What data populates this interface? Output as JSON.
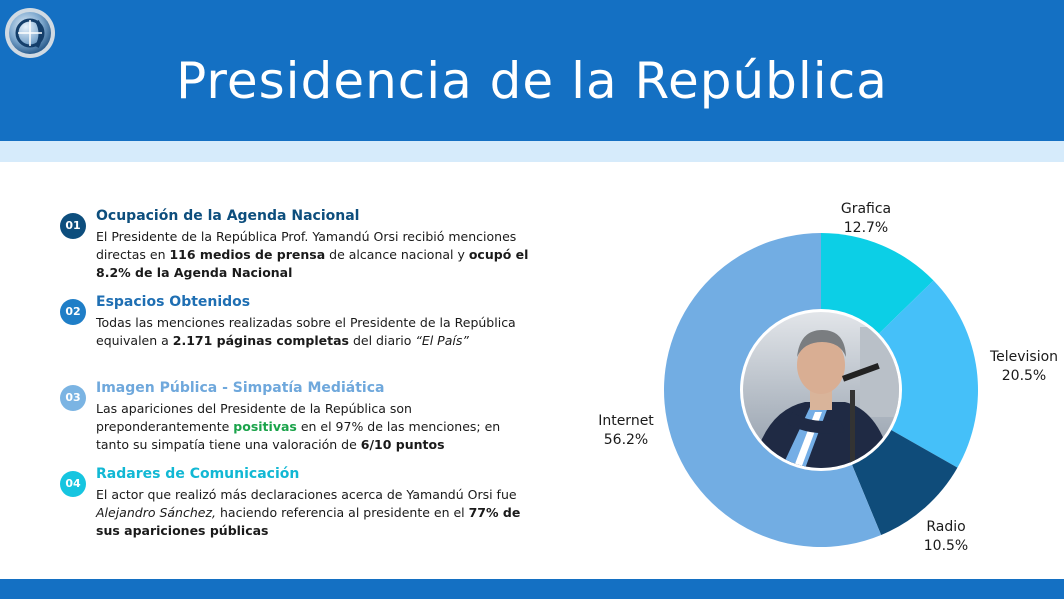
{
  "header": {
    "title": "Presidencia de la República"
  },
  "colors": {
    "header_bg": "#1470c3",
    "subband": "#d6ebfb",
    "badge1": "#0d4e7d",
    "badge2": "#1f7ec7",
    "badge3": "#7bb4e3",
    "badge4": "#16c5e0",
    "positive": "#1aa34a"
  },
  "items": [
    {
      "num": "01",
      "title": "Ocupación de la Agenda Nacional",
      "p1": "El Presidente de la República Prof. Yamandú Orsi recibió menciones directas en ",
      "b1": "116 medios de prensa",
      "p2": " de alcance nacional y ",
      "b2": "ocupó el 8.2% de la Agenda Nacional"
    },
    {
      "num": "02",
      "title": "Espacios Obtenidos",
      "p1": "Todas las menciones realizadas sobre el Presidente de la República equivalen a ",
      "b1": "2.171 páginas completas",
      "p2": " del diario ",
      "i1": "“El País”"
    },
    {
      "num": "03",
      "title": "Imagen Pública - Simpatía Mediática",
      "p1": "Las apariciones del Presidente de la República son preponderantemente ",
      "g1": "positivas",
      "p2": " en el 97% de las menciones; en tanto su simpatía tiene una valoración de ",
      "b1": "6/10 puntos"
    },
    {
      "num": "04",
      "title": "Radares de Comunicación",
      "p1": "El actor que realizó más declaraciones acerca de Yamandú Orsi fue ",
      "i1": "Alejandro Sánchez,",
      "p2": " haciendo referencia al presidente en el  ",
      "b1": "77% de sus apariciones públicas"
    }
  ],
  "chart_data": {
    "type": "pie",
    "style": "donut",
    "categories": [
      "Grafica",
      "Television",
      "Radio",
      "Internet"
    ],
    "values": [
      12.7,
      20.5,
      10.5,
      56.2
    ],
    "value_labels": [
      "12.7%",
      "20.5%",
      "10.5%",
      "56.2%"
    ],
    "colors": [
      "#0ccfe6",
      "#45c0f9",
      "#0f4c7a",
      "#72ade3"
    ],
    "start": "top, clockwise",
    "center": "photo of the president"
  }
}
